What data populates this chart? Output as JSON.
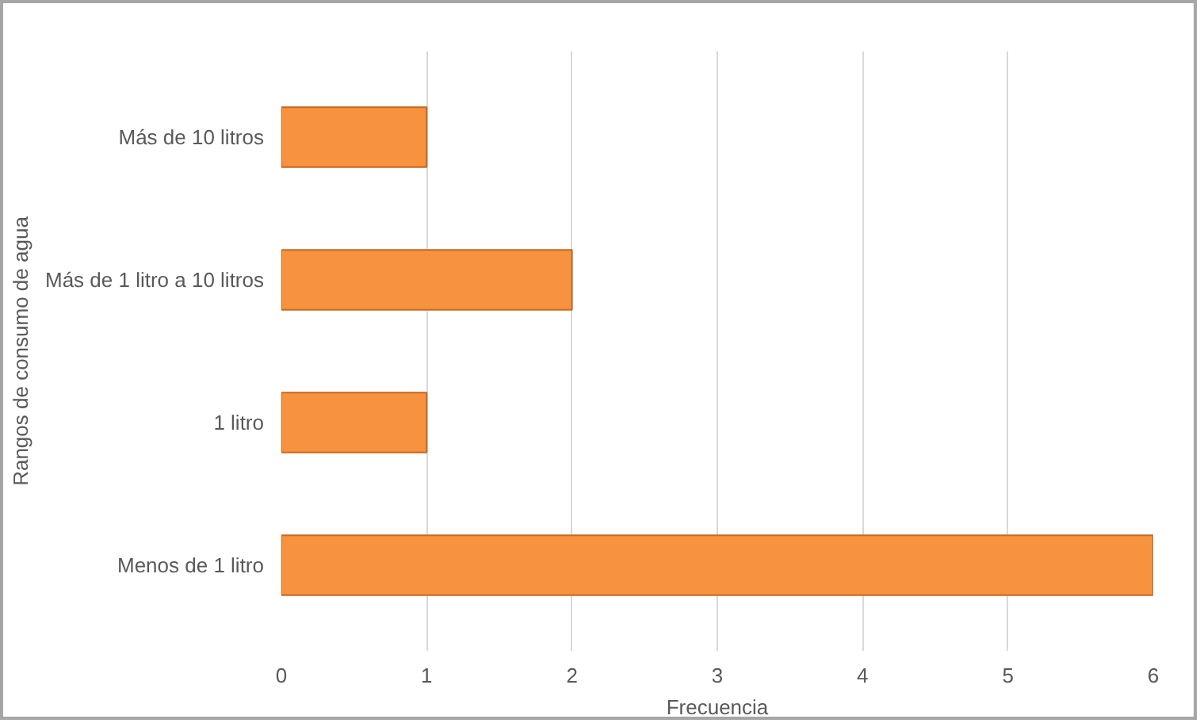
{
  "chart_data": {
    "type": "bar",
    "orientation": "horizontal",
    "categories": [
      "Más de 10 litros",
      "Más de 1 litro a 10 litros",
      "1 litro",
      "Menos de 1 litro"
    ],
    "values": [
      1,
      2,
      1,
      6
    ],
    "color": "#f7923f",
    "xlim": [
      0,
      6
    ],
    "xticks": [
      0,
      1,
      2,
      3,
      4,
      5,
      6
    ],
    "grid": "x",
    "xlabel": "Frecuencia",
    "ylabel": "Rangos de consumo de agua"
  }
}
